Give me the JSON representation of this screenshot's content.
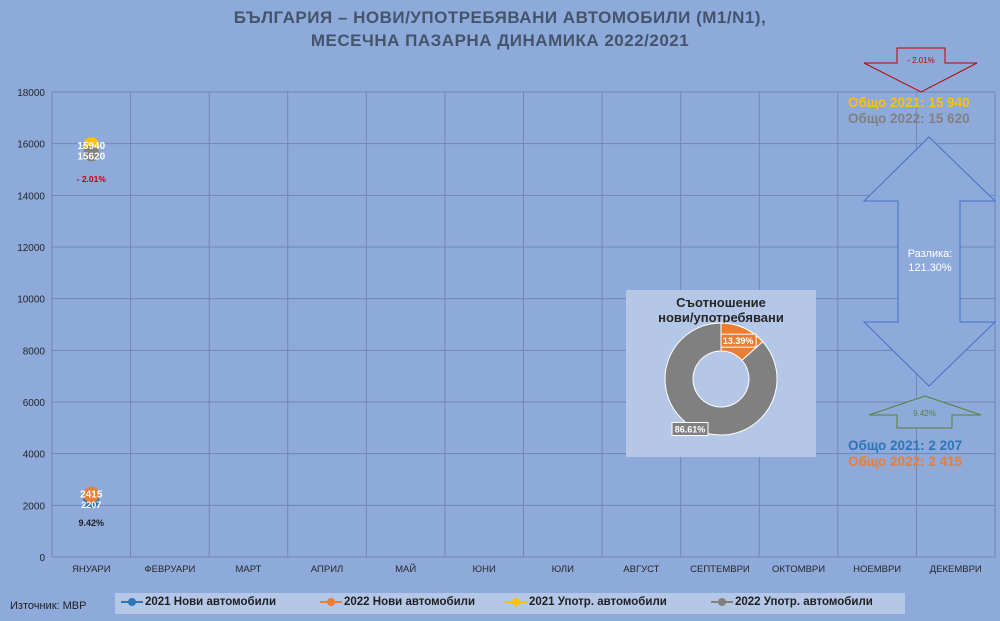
{
  "title": {
    "line1": "БЪЛГАРИЯ – НОВИ/УПОТРЕБЯВАНИ АВТОМОБИЛИ (M1/N1),",
    "line2": "МЕСЕЧНА ПАЗАРНА ДИНАМИКА 2022/2021"
  },
  "source": "Източник: МВР",
  "colors": {
    "background": "#8eaadb",
    "new_2021": "#2e75b6",
    "new_2022": "#ed7d31",
    "used_2021": "#ffc000",
    "used_2022": "#808080",
    "down_arrow": "#c00000",
    "up_arrow": "#548235"
  },
  "chart_data": {
    "type": "scatter",
    "categories": [
      "ЯНУАРИ",
      "ФЕВРУАРИ",
      "МАРТ",
      "АПРИЛ",
      "МАЙ",
      "ЮНИ",
      "ЮЛИ",
      "АВГУСТ",
      "СЕПТЕМВРИ",
      "ОКТОМВРИ",
      "НОЕМВРИ",
      "ДЕКЕМВРИ"
    ],
    "ylim": [
      0,
      18000
    ],
    "yticks": [
      0,
      2000,
      4000,
      6000,
      8000,
      10000,
      12000,
      14000,
      16000,
      18000
    ],
    "grid": true,
    "legend_position": "bottom",
    "series": [
      {
        "name": "2021 Нови автомобили",
        "color": "#2e75b6",
        "values": [
          2207
        ]
      },
      {
        "name": "2022 Нови автомобили",
        "color": "#ed7d31",
        "values": [
          2415
        ]
      },
      {
        "name": "2021 Употр. автомобили",
        "color": "#ffc000",
        "values": [
          15940
        ]
      },
      {
        "name": "2022 Употр. автомобили",
        "color": "#808080",
        "values": [
          15620
        ]
      }
    ],
    "data_labels": {
      "used_2021": "15940",
      "used_2022": "15620",
      "new_2021": "2207",
      "new_2022": "2415",
      "used_change": "- 2.01%",
      "new_change": "9.42%"
    },
    "totals": {
      "used_2021": "Общо 2021: 15 940",
      "used_2022": "Общо 2022: 15 620",
      "new_2021": "Общо 2021: 2 207",
      "new_2022": "Общо 2022: 2 415",
      "used_change": "- 2.01%",
      "new_change": "9.42%",
      "difference_label": "Разлика:",
      "difference_value": "121.30%"
    },
    "ratio": {
      "type": "pie",
      "title_line1": "Съотношение",
      "title_line2": "нови/употребявани",
      "slices": [
        {
          "label": "13.39%",
          "value": 13.39,
          "color": "#ed7d31"
        },
        {
          "label": "86.61%",
          "value": 86.61,
          "color": "#808080"
        }
      ]
    }
  }
}
